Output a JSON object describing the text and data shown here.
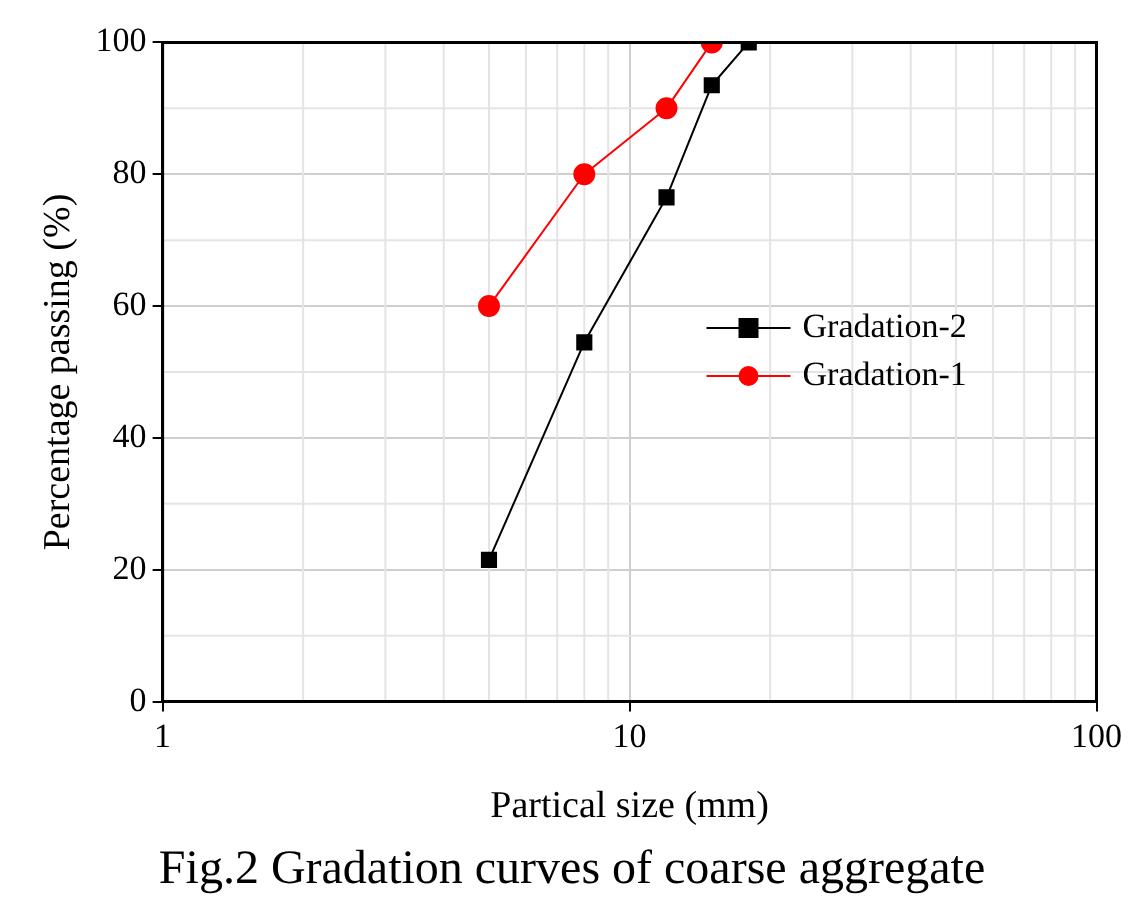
{
  "chart_data": {
    "type": "line",
    "xlabel": "Partical size (mm)",
    "ylabel": "Percentage passing (%)",
    "log": "x",
    "xlim": [
      1,
      100
    ],
    "xticks": [
      1,
      10,
      100
    ],
    "ylim": [
      0,
      100
    ],
    "yticks": [
      0,
      20,
      40,
      60,
      80,
      100
    ],
    "grid": true,
    "legend": "right",
    "line_style": "solid",
    "series": [
      {
        "name": "Gradation-2",
        "color": "#000000",
        "marker": "square",
        "x": [
          5,
          8,
          12,
          15,
          18
        ],
        "values": [
          21.5,
          54.5,
          76.5,
          93.5,
          100
        ]
      },
      {
        "name": "Gradation-1",
        "color": "#ff0000",
        "marker": "circle",
        "x": [
          5,
          8,
          12,
          15
        ],
        "values": [
          60,
          80,
          90,
          100
        ]
      }
    ],
    "annotations": [
      "Fig.2 Gradation curves of coarse aggregate"
    ]
  }
}
